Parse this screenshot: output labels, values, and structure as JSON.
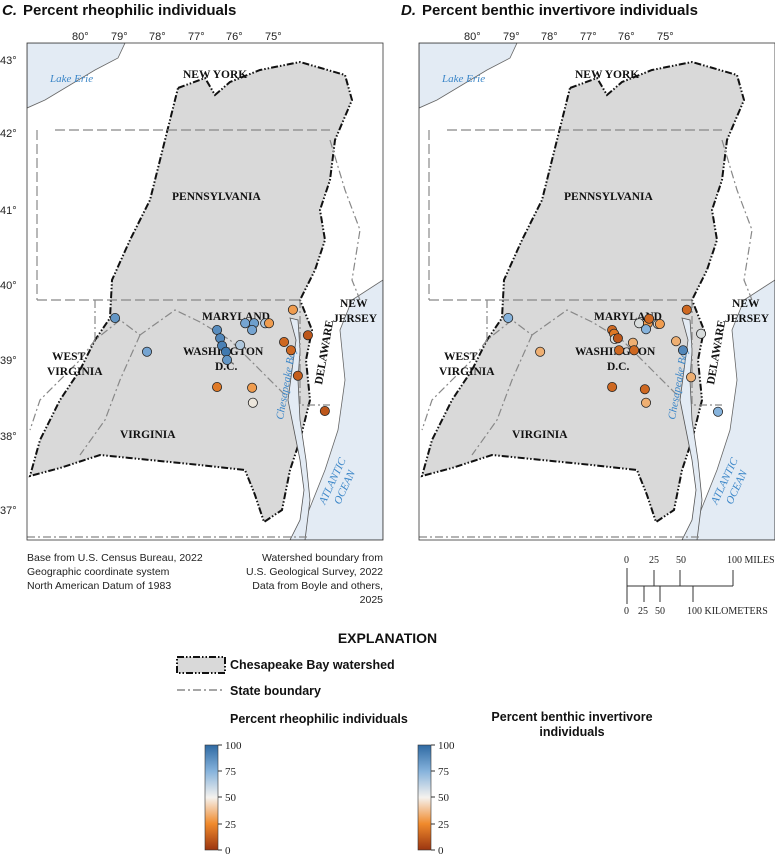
{
  "panels": [
    {
      "letter": "C.",
      "title": "Percent rheophilic individuals"
    },
    {
      "letter": "D.",
      "title": "Percent benthic invertivore individuals"
    }
  ],
  "map_labels": {
    "lake": "Lake Erie",
    "new_york": "NEW YORK",
    "pennsylvania": "PENNSYLVANIA",
    "maryland": "MARYLAND",
    "washington": "WASHINGTON",
    "dc": "D.C.",
    "west": "WEST",
    "virginia_w": "VIRGINIA",
    "virginia": "VIRGINIA",
    "new": "NEW",
    "jersey": "JERSEY",
    "delaware": "DELAWARE",
    "bay": "Chesapeake Bay",
    "atlantic": "ATLANTIC",
    "ocean": "OCEAN"
  },
  "longitude_ticks": [
    "80°",
    "79°",
    "78°",
    "77°",
    "76°",
    "75°"
  ],
  "latitude_ticks": [
    "43°",
    "42°",
    "41°",
    "40°",
    "39°",
    "38°",
    "37°"
  ],
  "credits_left": [
    "Base from U.S. Census Bureau, 2022",
    "Geographic coordinate system",
    "North American Datum of 1983"
  ],
  "credits_right": [
    "Watershed boundary from",
    "U.S. Geological Survey, 2022",
    "Data from Boyle and others, 2025"
  ],
  "scale_bar": {
    "miles_labels": [
      "0",
      "25",
      "50",
      "100 MILES"
    ],
    "km_labels": [
      "0",
      "25",
      "50",
      "100 KILOMETERS"
    ]
  },
  "explanation": {
    "title": "EXPLANATION",
    "watershed": "Chesapeake Bay watershed",
    "state_boundary": "State boundary",
    "scale_c_title": "Percent rheophilic individuals",
    "scale_d_title_1": "Percent benthic invertivore",
    "scale_d_title_2": "individuals",
    "scale_ticks": [
      "100",
      "75",
      "50",
      "25",
      "0"
    ]
  },
  "colors": {
    "scale": [
      "#9b3510",
      "#f08a2c",
      "#ece6dc",
      "#86b3dc",
      "#2f6aa3"
    ],
    "watershed_fill": "#d9d9d9",
    "water": "#e3ebf4"
  },
  "sites_panel_c": [
    [
      -79.09,
      39.56,
      85
    ],
    [
      -78.26,
      39.11,
      80
    ],
    [
      -76.44,
      39.4,
      88
    ],
    [
      -76.36,
      39.29,
      90
    ],
    [
      -76.31,
      39.19,
      92
    ],
    [
      -76.21,
      39.11,
      95
    ],
    [
      -76.18,
      39.0,
      85
    ],
    [
      -75.84,
      39.2,
      65
    ],
    [
      -75.71,
      39.49,
      80
    ],
    [
      -75.48,
      39.49,
      82
    ],
    [
      -75.53,
      39.4,
      80
    ],
    [
      -75.19,
      39.49,
      65
    ],
    [
      -75.09,
      39.49,
      30
    ],
    [
      -74.47,
      39.67,
      30
    ],
    [
      -74.7,
      39.24,
      15
    ],
    [
      -74.52,
      39.13,
      15
    ],
    [
      -74.08,
      39.33,
      10
    ],
    [
      -74.34,
      38.79,
      12
    ],
    [
      -73.64,
      38.32,
      10
    ],
    [
      -76.44,
      38.64,
      20
    ],
    [
      -75.53,
      38.63,
      30
    ],
    [
      -75.51,
      38.43,
      50
    ]
  ],
  "sites_panel_d": [
    [
      -79.06,
      39.56,
      75
    ],
    [
      -78.23,
      39.11,
      35
    ],
    [
      -76.36,
      39.4,
      15
    ],
    [
      -76.31,
      39.35,
      20
    ],
    [
      -76.29,
      39.28,
      55
    ],
    [
      -76.21,
      39.29,
      10
    ],
    [
      -76.18,
      39.13,
      15
    ],
    [
      -75.82,
      39.23,
      35
    ],
    [
      -75.79,
      39.13,
      15
    ],
    [
      -75.66,
      39.49,
      55
    ],
    [
      -75.43,
      39.49,
      30
    ],
    [
      -75.48,
      39.41,
      75
    ],
    [
      -75.4,
      39.55,
      15
    ],
    [
      -75.17,
      39.48,
      55
    ],
    [
      -75.12,
      39.48,
      30
    ],
    [
      -74.42,
      39.67,
      15
    ],
    [
      -74.05,
      39.35,
      55
    ],
    [
      -74.7,
      39.25,
      35
    ],
    [
      -74.52,
      39.13,
      90
    ],
    [
      -74.31,
      38.77,
      35
    ],
    [
      -76.36,
      38.64,
      15
    ],
    [
      -75.51,
      38.61,
      15
    ],
    [
      -75.48,
      38.43,
      35
    ],
    [
      -73.61,
      38.31,
      75
    ]
  ]
}
